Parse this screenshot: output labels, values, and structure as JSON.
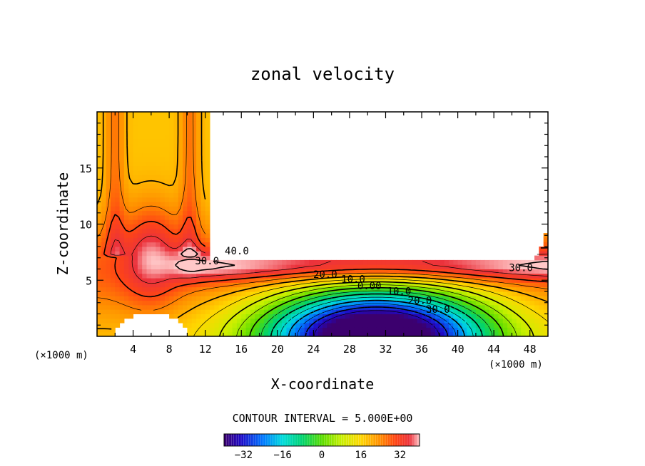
{
  "chart_data": {
    "type": "heatmap",
    "title": "zonal velocity",
    "xlabel": "X-coordinate",
    "ylabel": "Z-coordinate",
    "x_unit_left": "(×1000 m)",
    "x_unit_right": "(×1000 m)",
    "xlim": [
      0,
      50
    ],
    "ylim": [
      0,
      20
    ],
    "x_ticks": [
      "4",
      "8",
      "12",
      "16",
      "20",
      "24",
      "28",
      "32",
      "36",
      "40",
      "44",
      "48"
    ],
    "y_ticks": [
      "5",
      "10",
      "15"
    ],
    "contour_interval_text": "CONTOUR INTERVAL = 5.000E+00",
    "colorbar_ticks": [
      "−32",
      "−16",
      "0",
      "16",
      "32"
    ],
    "colorbar_range": [
      -40,
      40
    ],
    "contour_labels": [
      {
        "text": "40.0",
        "x": 15.5,
        "y": 7.3
      },
      {
        "text": "30.0",
        "x": 12.2,
        "y": 6.4
      },
      {
        "text": "30.0",
        "x": 47.0,
        "y": 5.8
      },
      {
        "text": "20.0",
        "x": 25.3,
        "y": 5.2
      },
      {
        "text": "10.0",
        "x": 28.4,
        "y": 4.8
      },
      {
        "text": "0.00",
        "x": 30.2,
        "y": 4.2
      },
      {
        "text": "10.0",
        "x": 33.5,
        "y": 3.7
      },
      {
        "text": "20.0",
        "x": 35.8,
        "y": 2.9
      },
      {
        "text": "30.0",
        "x": 37.8,
        "y": 2.1
      }
    ],
    "field_notes": "Max about 35-40 near x~6, z~6-9; jet core ~33-35 at z~6 along x 12-50; min about -35 to -40 near x~40, z~0.5; blank (missing) regions above z~7 for x>13 and below z~2 for x 2-10."
  }
}
